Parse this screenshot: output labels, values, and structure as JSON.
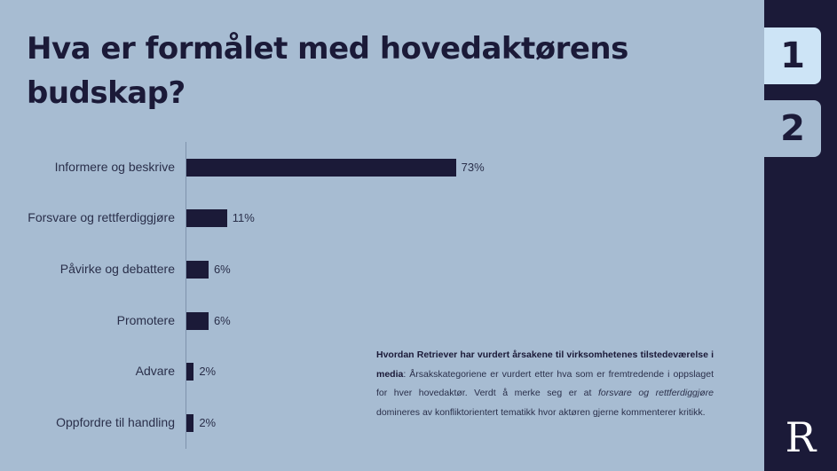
{
  "title": "Hva er formålet med hovedaktørens budskap?",
  "tabs": [
    {
      "label": "1",
      "active": true
    },
    {
      "label": "2",
      "active": false
    }
  ],
  "logo": {
    "glyph": "R",
    "icon": "retriever-logo-icon"
  },
  "colors": {
    "background": "#a7bcd2",
    "bar": "#1b1a38",
    "sidebar": "#1b1a38",
    "active_tab": "#cde4f6"
  },
  "note": {
    "bold": "Hvordan Retriever har vurdert årsakene til virksomhetenes tilstedeværelse i media",
    "text1": ": Årsakskategoriene er vurdert etter hva som er fremtredende i oppslaget for hver hovedaktør. Verdt å merke seg er at ",
    "italic": "forsvare og rettferdiggjøre",
    "text2": " domineres av konfliktorientert tematikk hvor aktøren gjerne kommenterer kritikk."
  },
  "chart_data": {
    "type": "bar",
    "orientation": "horizontal",
    "title": "Hva er formålet med hovedaktørens budskap?",
    "xlabel": "",
    "ylabel": "",
    "categories": [
      "Informere og beskrive",
      "Forsvare og rettferdiggjøre",
      "Påvirke og debattere",
      "Promotere",
      "Advare",
      "Oppfordre til handling"
    ],
    "values": [
      73,
      11,
      6,
      6,
      2,
      2
    ],
    "value_labels": [
      "73%",
      "11%",
      "6%",
      "6%",
      "2%",
      "2%"
    ],
    "unit": "%",
    "grid": false,
    "legend": null,
    "xlim": [
      0,
      100
    ]
  }
}
